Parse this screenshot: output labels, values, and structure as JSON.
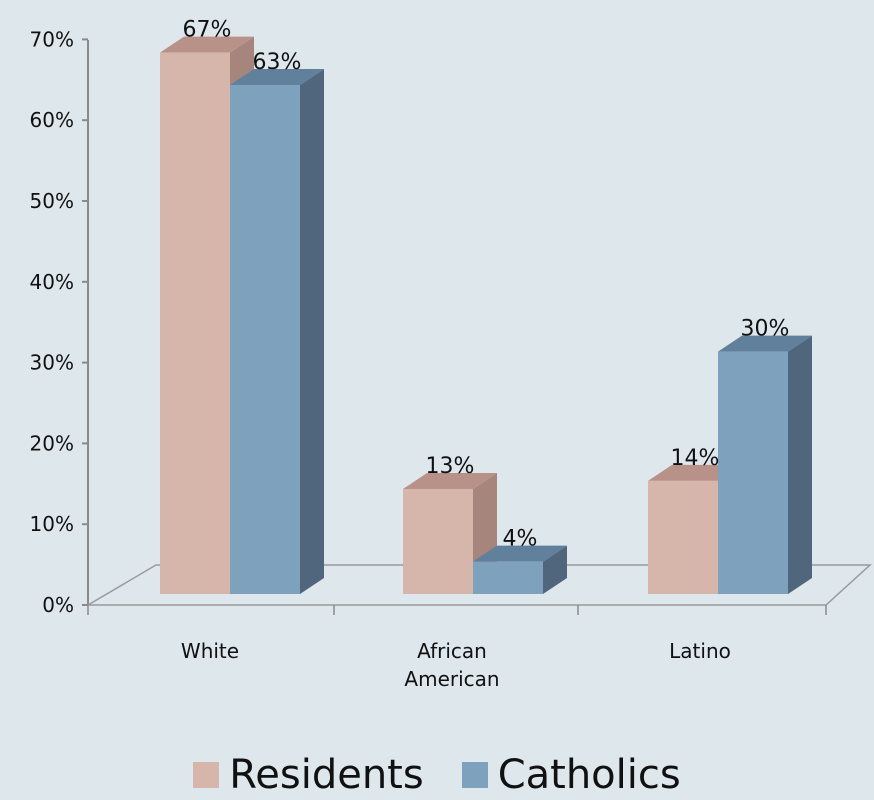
{
  "chart_data": {
    "type": "bar",
    "categories": [
      "White",
      "African\nAmerican",
      "Latino"
    ],
    "series": [
      {
        "name": "Residents",
        "values": [
          67,
          13,
          14
        ],
        "color": "#d6b5aa",
        "side_color": "#a6857d",
        "top_color": "#b89288"
      },
      {
        "name": "Catholics",
        "values": [
          63,
          4,
          30
        ],
        "color": "#7ea1bd",
        "side_color": "#4f667d",
        "top_color": "#61809b"
      }
    ],
    "data_labels": [
      [
        "67%",
        "13%",
        "14%"
      ],
      [
        "63%",
        "4%",
        "30%"
      ]
    ],
    "yticks": [
      "0%",
      "10%",
      "20%",
      "30%",
      "40%",
      "50%",
      "60%",
      "70%"
    ],
    "ylim": [
      0,
      70
    ],
    "title": "",
    "xlabel": "",
    "ylabel": "",
    "grid": false,
    "legend_position": "bottom",
    "three_d": true
  }
}
